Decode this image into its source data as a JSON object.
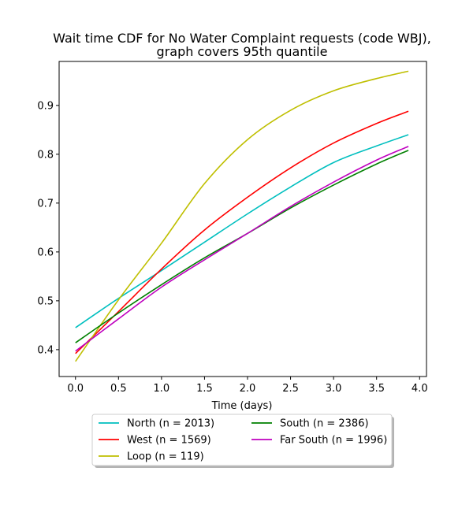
{
  "chart_data": {
    "type": "line",
    "title_lines": [
      "Wait time CDF for No Water Complaint  requests (code WBJ),",
      "graph covers 95th quantile"
    ],
    "xlabel": "Time (days)",
    "ylabel": "",
    "xlim": [
      -0.19,
      4.08
    ],
    "ylim": [
      0.345,
      0.99
    ],
    "xticks": [
      0.0,
      0.5,
      1.0,
      1.5,
      2.0,
      2.5,
      3.0,
      3.5,
      4.0
    ],
    "xtick_labels": [
      "0.0",
      "0.5",
      "1.0",
      "1.5",
      "2.0",
      "2.5",
      "3.0",
      "3.5",
      "4.0"
    ],
    "yticks": [
      0.4,
      0.5,
      0.6,
      0.7,
      0.8,
      0.9
    ],
    "ytick_labels": [
      "0.4",
      "0.5",
      "0.6",
      "0.7",
      "0.8",
      "0.9"
    ],
    "grid": false,
    "legend_placement": "below-center",
    "x": [
      0.0,
      0.5,
      1.0,
      1.5,
      2.0,
      2.5,
      3.0,
      3.5,
      3.87
    ],
    "series": [
      {
        "name": "North (n = 2013)",
        "color": "#00bfbf",
        "values": [
          0.445,
          0.505,
          0.562,
          0.62,
          0.678,
          0.733,
          0.783,
          0.817,
          0.84
        ]
      },
      {
        "name": "West (n = 1569)",
        "color": "#ff0000",
        "values": [
          0.392,
          0.478,
          0.565,
          0.645,
          0.712,
          0.772,
          0.823,
          0.863,
          0.888
        ]
      },
      {
        "name": "Loop (n = 119)",
        "color": "#bfbf00",
        "values": [
          0.376,
          0.502,
          0.618,
          0.74,
          0.83,
          0.89,
          0.93,
          0.955,
          0.97
        ]
      },
      {
        "name": "South (n = 2386)",
        "color": "#008000",
        "values": [
          0.414,
          0.475,
          0.533,
          0.588,
          0.638,
          0.69,
          0.737,
          0.78,
          0.808
        ]
      },
      {
        "name": "Far South (n = 1996)",
        "color": "#bf00bf",
        "values": [
          0.397,
          0.463,
          0.528,
          0.584,
          0.638,
          0.693,
          0.743,
          0.788,
          0.816
        ]
      }
    ]
  }
}
